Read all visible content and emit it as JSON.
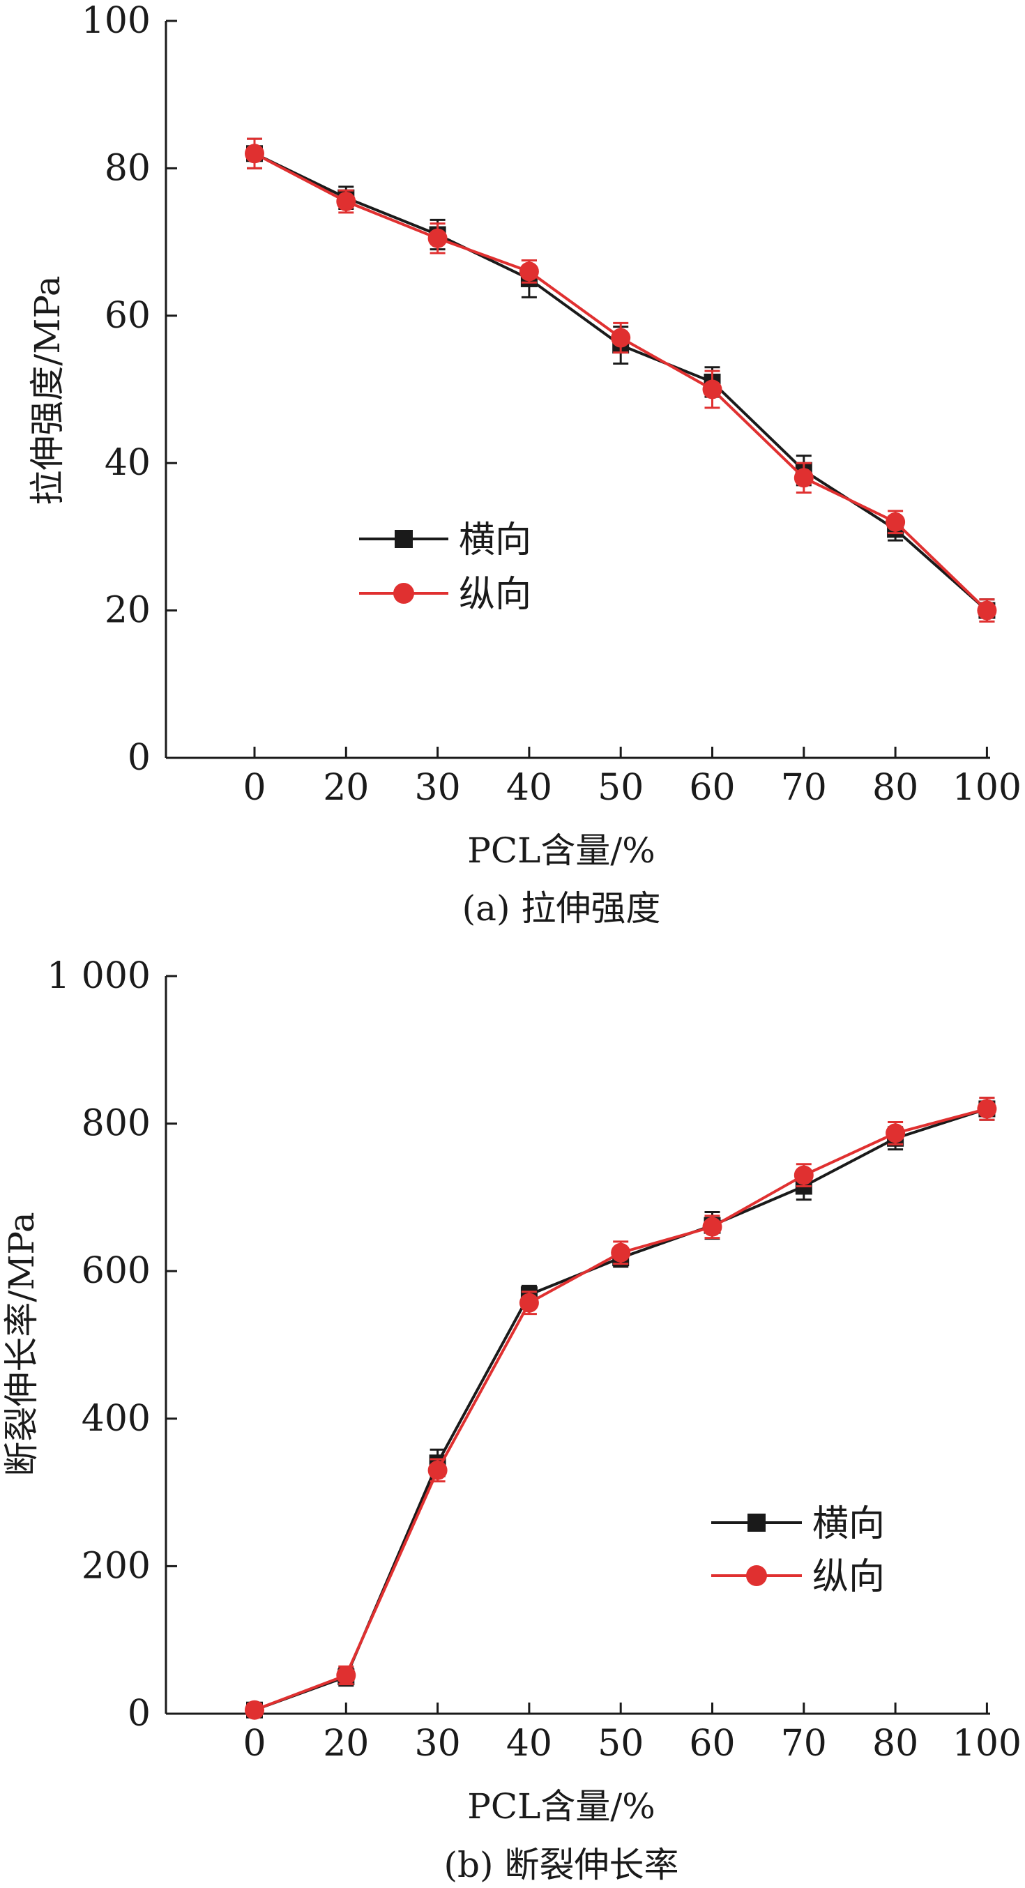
{
  "chart_data": [
    {
      "type": "line",
      "categories": [
        "0",
        "20",
        "30",
        "40",
        "50",
        "60",
        "70",
        "80",
        "100"
      ],
      "series": [
        {
          "name": "横向",
          "color": "#1a1a1a",
          "marker": "square",
          "values": [
            82,
            76,
            71,
            65,
            56,
            51,
            39,
            31,
            20
          ],
          "errors": [
            2,
            1.5,
            2,
            2.5,
            2.5,
            2,
            2,
            1.5,
            1.5
          ]
        },
        {
          "name": "纵向",
          "color": "#e03030",
          "marker": "circle",
          "values": [
            82,
            75.5,
            70.5,
            66,
            57,
            50,
            38,
            32,
            20
          ],
          "errors": [
            2,
            1.5,
            2,
            1.5,
            2,
            2.5,
            2,
            1.5,
            1.5
          ]
        }
      ],
      "ylim": [
        0,
        100
      ],
      "yticks": [
        "0",
        "20",
        "40",
        "60",
        "80",
        "100"
      ],
      "yticks_values": [
        0,
        20,
        40,
        60,
        80,
        100
      ],
      "xlabel": "PCL含量/%",
      "ylabel": "拉伸强度/MPa",
      "caption": "(a) 拉伸强度",
      "legend_position": "center-left",
      "grid": false
    },
    {
      "type": "line",
      "categories": [
        "0",
        "20",
        "30",
        "40",
        "50",
        "60",
        "70",
        "80",
        "100"
      ],
      "series": [
        {
          "name": "横向",
          "color": "#1a1a1a",
          "marker": "square",
          "values": [
            5,
            50,
            340,
            568,
            618,
            662,
            715,
            780,
            820
          ],
          "errors": [
            8,
            12,
            18,
            12,
            12,
            18,
            18,
            15,
            15
          ]
        },
        {
          "name": "纵向",
          "color": "#e03030",
          "marker": "circle",
          "values": [
            5,
            52,
            330,
            557,
            625,
            660,
            730,
            787,
            820
          ],
          "errors": [
            8,
            12,
            15,
            15,
            15,
            15,
            15,
            15,
            15
          ]
        }
      ],
      "ylim": [
        0,
        1000
      ],
      "yticks": [
        "0",
        "200",
        "400",
        "600",
        "800",
        "1 000"
      ],
      "yticks_values": [
        0,
        200,
        400,
        600,
        800,
        1000
      ],
      "xlabel": "PCL含量/%",
      "ylabel": "断裂伸长率/MPa",
      "caption": "(b) 断裂伸长率",
      "legend_position": "lower-right",
      "grid": false
    }
  ]
}
